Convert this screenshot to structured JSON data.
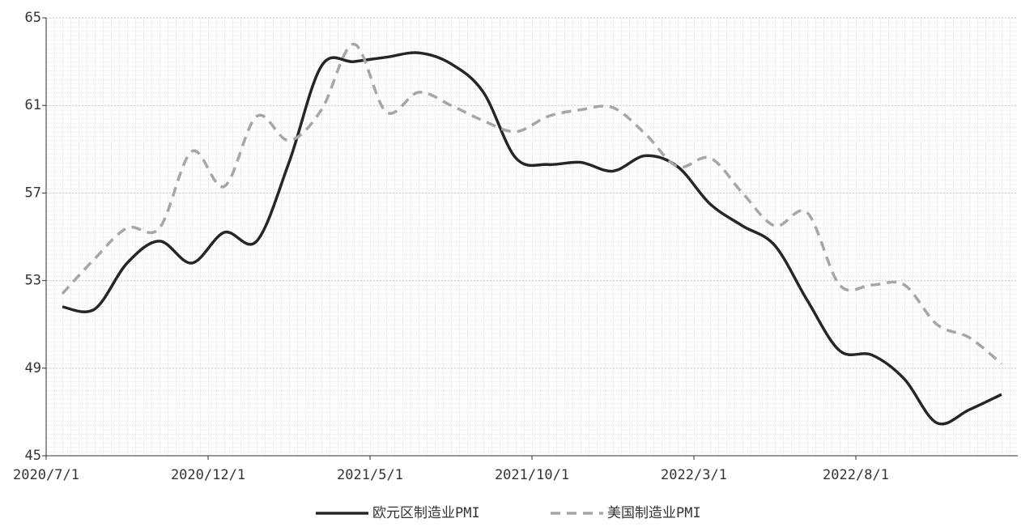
{
  "chart_data": {
    "type": "line",
    "categories": [
      "2020/7/1",
      null,
      null,
      null,
      null,
      "2020/12/1",
      null,
      null,
      null,
      null,
      "2021/5/1",
      null,
      null,
      null,
      null,
      "2021/10/1",
      null,
      null,
      null,
      null,
      "2022/3/1",
      null,
      null,
      null,
      null,
      "2022/8/1",
      null,
      null,
      null,
      null
    ],
    "series": [
      {
        "name": "欧元区制造业PMI",
        "color": "#262626",
        "dash": false,
        "values": [
          51.8,
          51.7,
          53.8,
          54.8,
          53.8,
          55.2,
          54.8,
          58.4,
          62.8,
          63.0,
          63.2,
          63.4,
          62.9,
          61.6,
          58.6,
          58.3,
          58.4,
          58.0,
          58.7,
          58.2,
          56.5,
          55.5,
          54.6,
          52.1,
          49.8,
          49.6,
          48.5,
          46.5,
          47.1,
          47.8
        ]
      },
      {
        "name": "美国制造业PMI",
        "color": "#a6a6a6",
        "dash": true,
        "values": [
          52.4,
          54.0,
          55.4,
          55.4,
          58.9,
          57.3,
          60.5,
          59.4,
          60.8,
          63.8,
          60.7,
          61.6,
          61.0,
          60.3,
          59.8,
          60.5,
          60.8,
          60.9,
          59.7,
          58.2,
          58.6,
          57.0,
          55.5,
          56.1,
          52.8,
          52.8,
          52.8,
          51.0,
          50.4,
          49.2
        ]
      }
    ],
    "ylim": [
      45,
      65
    ],
    "yticks": [
      45,
      49,
      53,
      57,
      61,
      65
    ],
    "grid": true,
    "legend": "bottom"
  }
}
